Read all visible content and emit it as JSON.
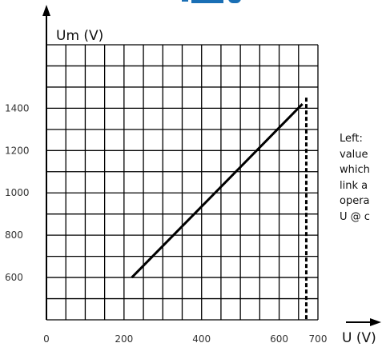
{
  "colors": {
    "grid": "#000000",
    "line": "#000000",
    "heading_fragment": "#1a6fb5"
  },
  "chart_data": {
    "type": "line",
    "xlabel": "U (V)",
    "ylabel": "Um (V)",
    "xlim": [
      0,
      700
    ],
    "ylim": [
      400,
      1700
    ],
    "x_ticks": [
      0,
      200,
      400,
      600,
      700
    ],
    "y_ticks": [
      600,
      800,
      1000,
      1200,
      1400
    ],
    "grid": true,
    "series": [
      {
        "x": [
          220,
          660
        ],
        "y": [
          600,
          1420
        ],
        "style": "solid"
      }
    ],
    "reference_lines": [
      {
        "orientation": "vertical",
        "x": 670,
        "style": "dashed"
      }
    ]
  },
  "side_note": [
    "Left:",
    "value",
    "which",
    "link a",
    "opera",
    "U @ c"
  ]
}
